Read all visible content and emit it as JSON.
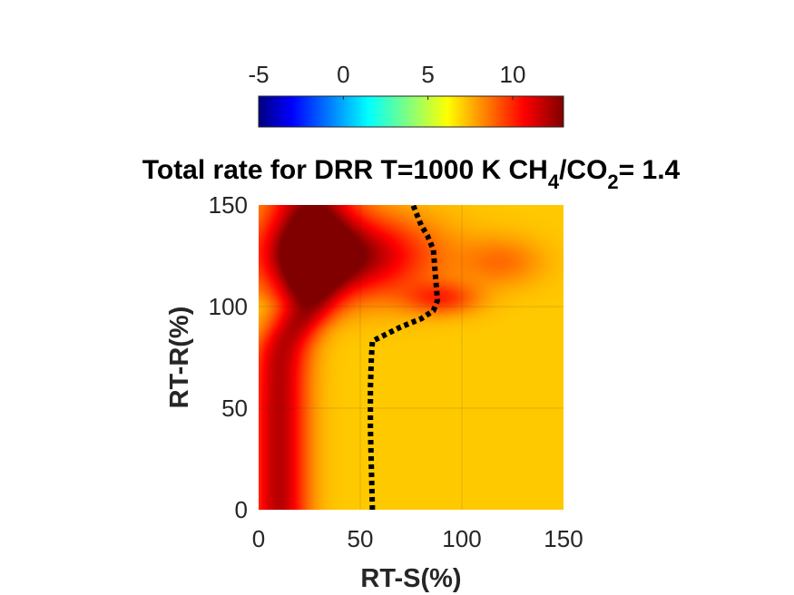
{
  "chart_data": {
    "type": "heatmap",
    "title": {
      "prefix": "Total rate for DRR T=1000 K CH",
      "sub1": "4",
      "mid": "/CO",
      "sub2": "2",
      "suffix": "= 1.4"
    },
    "xlabel": "RT-S(%)",
    "ylabel": "RT-R(%)",
    "xlim": [
      0,
      150
    ],
    "ylim": [
      0,
      150
    ],
    "xticks": [
      "0",
      "50",
      "100",
      "150"
    ],
    "yticks": [
      "0",
      "50",
      "100",
      "150"
    ],
    "grid": true,
    "colormap": "jet",
    "colorbar": {
      "location": "top",
      "range": [
        -5,
        13
      ],
      "ticks": [
        "-5",
        "0",
        "5",
        "10"
      ]
    },
    "surface": {
      "description_values": "estimated rate field",
      "background": 7.2,
      "ridge_peak": 12.0,
      "upper_peak": 12.5,
      "hot_spot": {
        "x": 40,
        "y": 125,
        "value": 13.0
      },
      "dip_at_y": 100,
      "dip_value": 7.0
    },
    "contour": {
      "name": "boundary",
      "style": "dotted",
      "color": "#000000",
      "x": [
        56,
        55.5,
        55,
        55,
        55.5,
        56,
        70,
        80,
        86,
        88,
        87,
        86,
        83,
        80,
        78,
        76
      ],
      "y": [
        0,
        20,
        40,
        60,
        75,
        83,
        90,
        94,
        98,
        103,
        115,
        128,
        135,
        140,
        145,
        150
      ]
    }
  }
}
